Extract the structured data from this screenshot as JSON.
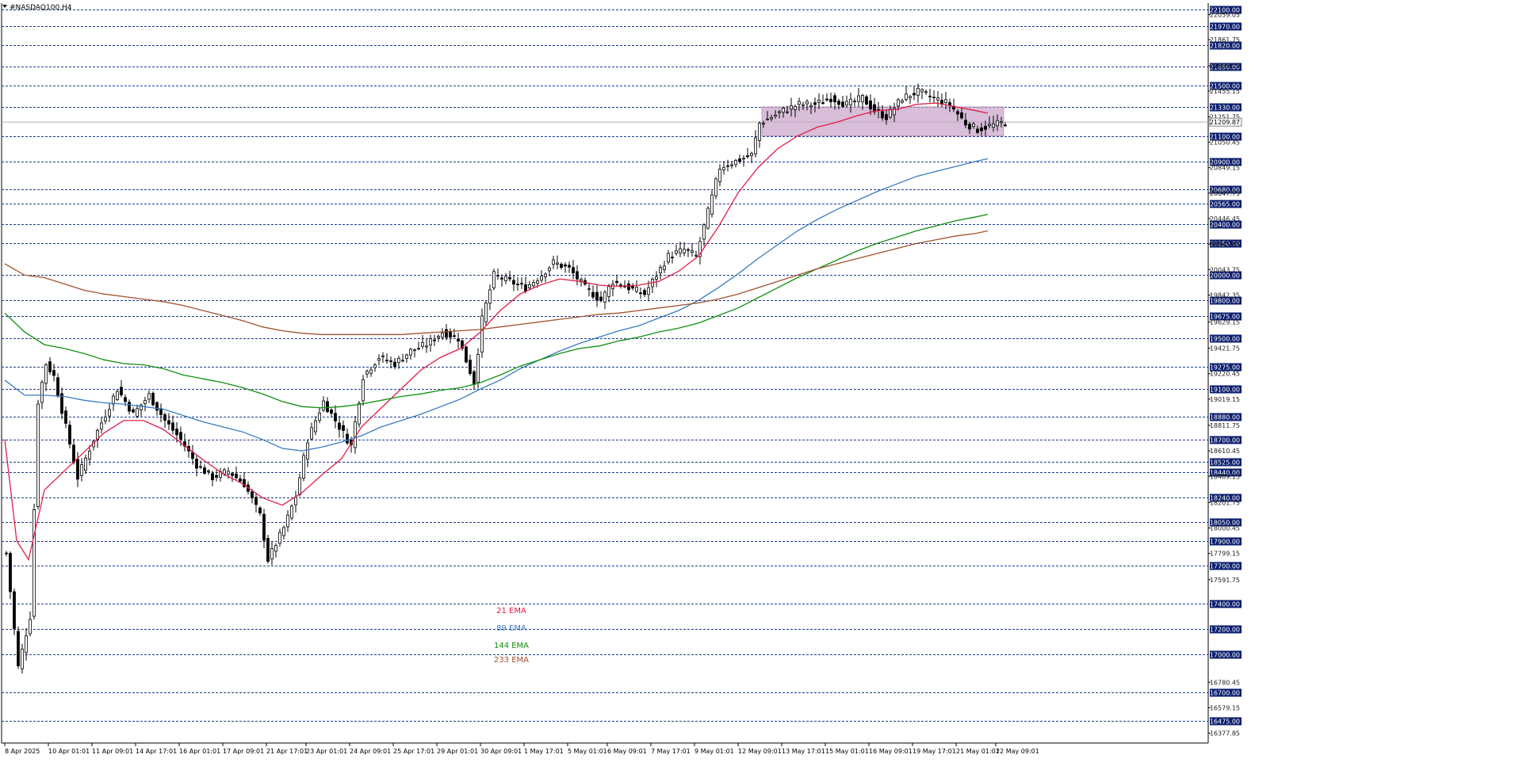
{
  "symbol_label": "#NASDAQ100,H4",
  "colors": {
    "ema21": "#e11d48",
    "ema89": "#3a7cc0",
    "ema144": "#0f8f0f",
    "ema233": "#a0522d",
    "grid": "#1f3a8a",
    "candle": "#000000",
    "zone": "#c8a2c8",
    "axis_label_bg": "#0b1e6e"
  },
  "legend": [
    {
      "key": "ema21",
      "label": "21 EMA"
    },
    {
      "key": "ema89",
      "label": "89 EMA"
    },
    {
      "key": "ema144",
      "label": "144 EMA"
    },
    {
      "key": "ema233",
      "label": "233 EMA"
    }
  ],
  "chart_data": {
    "type": "candlestick",
    "title": "#NASDAQ100,H4",
    "ylim": [
      16300,
      22150
    ],
    "n_bars": 253,
    "highlighted_levels": [
      22100.0,
      21970.0,
      21820.0,
      21650.0,
      21500.0,
      21330.0,
      21100.0,
      20900.0,
      20680.0,
      20565.0,
      20400.0,
      20250.0,
      20000.0,
      19800.0,
      19675.0,
      19500.0,
      19275.0,
      19100.0,
      18880.0,
      18700.0,
      18525.0,
      18440.0,
      18240.0,
      18050.0,
      17900.0,
      17700.0,
      17400.0,
      17200.0,
      17000.0,
      16700.0,
      16475.0
    ],
    "price_ticks": [
      22059.05,
      21861.75,
      21655.15,
      21455.15,
      21251.75,
      21050.45,
      20849.15,
      20647.75,
      20446.45,
      20245.05,
      20043.75,
      19842.35,
      19629.15,
      19421.75,
      19220.45,
      19019.15,
      18811.75,
      18610.45,
      18409.15,
      18201.75,
      18000.45,
      17799.15,
      17591.75,
      16780.45,
      16579.15,
      16377.85
    ],
    "current_price": 21209.87,
    "x_labels": [
      {
        "bar": 0,
        "label": "8 Apr 2025"
      },
      {
        "bar": 11,
        "label": "10 Apr 01:01"
      },
      {
        "bar": 22,
        "label": "11 Apr 09:01"
      },
      {
        "bar": 33,
        "label": "14 Apr 17:01"
      },
      {
        "bar": 44,
        "label": "16 Apr 01:01"
      },
      {
        "bar": 55,
        "label": "17 Apr 09:01"
      },
      {
        "bar": 66,
        "label": "21 Apr 17:01"
      },
      {
        "bar": 76,
        "label": "23 Apr 01:01"
      },
      {
        "bar": 87,
        "label": "24 Apr 09:01"
      },
      {
        "bar": 98,
        "label": "25 Apr 17:01"
      },
      {
        "bar": 109,
        "label": "29 Apr 01:01"
      },
      {
        "bar": 120,
        "label": "30 Apr 09:01"
      },
      {
        "bar": 131,
        "label": "1 May 17:01"
      },
      {
        "bar": 142,
        "label": "5 May 01:01"
      },
      {
        "bar": 152,
        "label": "6 May 09:01"
      },
      {
        "bar": 163,
        "label": "7 May 17:01"
      },
      {
        "bar": 174,
        "label": "9 May 01:01"
      },
      {
        "bar": 185,
        "label": "12 May 09:01"
      },
      {
        "bar": 196,
        "label": "13 May 17:01"
      },
      {
        "bar": 207,
        "label": "15 May 01:01"
      },
      {
        "bar": 218,
        "label": "16 May 09:01"
      },
      {
        "bar": 229,
        "label": "19 May 17:01"
      },
      {
        "bar": 240,
        "label": "21 May 01:01"
      },
      {
        "bar": 250,
        "label": "22 May 09:01"
      }
    ],
    "close_anchors": [
      [
        0,
        17800
      ],
      [
        3,
        16900
      ],
      [
        6,
        17300
      ],
      [
        8,
        19000
      ],
      [
        10,
        19300
      ],
      [
        12,
        19200
      ],
      [
        15,
        18800
      ],
      [
        18,
        18400
      ],
      [
        22,
        18700
      ],
      [
        25,
        18900
      ],
      [
        28,
        19100
      ],
      [
        32,
        18900
      ],
      [
        36,
        19050
      ],
      [
        40,
        18850
      ],
      [
        44,
        18700
      ],
      [
        48,
        18500
      ],
      [
        52,
        18400
      ],
      [
        56,
        18450
      ],
      [
        60,
        18350
      ],
      [
        64,
        18100
      ],
      [
        66,
        17750
      ],
      [
        70,
        18000
      ],
      [
        73,
        18250
      ],
      [
        76,
        18700
      ],
      [
        80,
        19000
      ],
      [
        84,
        18800
      ],
      [
        87,
        18650
      ],
      [
        90,
        19200
      ],
      [
        94,
        19350
      ],
      [
        98,
        19300
      ],
      [
        102,
        19400
      ],
      [
        106,
        19450
      ],
      [
        110,
        19550
      ],
      [
        114,
        19500
      ],
      [
        118,
        19150
      ],
      [
        120,
        19650
      ],
      [
        123,
        20000
      ],
      [
        127,
        19950
      ],
      [
        131,
        19900
      ],
      [
        135,
        20000
      ],
      [
        138,
        20100
      ],
      [
        142,
        20050
      ],
      [
        146,
        19900
      ],
      [
        150,
        19800
      ],
      [
        153,
        19950
      ],
      [
        157,
        19900
      ],
      [
        161,
        19850
      ],
      [
        164,
        20000
      ],
      [
        167,
        20150
      ],
      [
        171,
        20200
      ],
      [
        174,
        20150
      ],
      [
        177,
        20500
      ],
      [
        180,
        20850
      ],
      [
        184,
        20900
      ],
      [
        188,
        20950
      ],
      [
        190,
        21200
      ],
      [
        196,
        21300
      ],
      [
        200,
        21350
      ],
      [
        204,
        21350
      ],
      [
        208,
        21400
      ],
      [
        212,
        21350
      ],
      [
        216,
        21400
      ],
      [
        219,
        21300
      ],
      [
        222,
        21250
      ],
      [
        226,
        21400
      ],
      [
        230,
        21450
      ],
      [
        234,
        21400
      ],
      [
        238,
        21350
      ],
      [
        242,
        21200
      ],
      [
        245,
        21150
      ],
      [
        248,
        21180
      ],
      [
        252,
        21210
      ]
    ],
    "series": [
      {
        "name": "21 EMA",
        "key": "ema21",
        "points": [
          [
            0,
            18700
          ],
          [
            3,
            17900
          ],
          [
            6,
            17750
          ],
          [
            10,
            18300
          ],
          [
            15,
            18450
          ],
          [
            20,
            18600
          ],
          [
            25,
            18750
          ],
          [
            30,
            18850
          ],
          [
            35,
            18850
          ],
          [
            40,
            18780
          ],
          [
            45,
            18660
          ],
          [
            50,
            18540
          ],
          [
            55,
            18430
          ],
          [
            60,
            18350
          ],
          [
            65,
            18240
          ],
          [
            70,
            18180
          ],
          [
            75,
            18280
          ],
          [
            80,
            18420
          ],
          [
            85,
            18550
          ],
          [
            90,
            18800
          ],
          [
            95,
            18950
          ],
          [
            100,
            19100
          ],
          [
            105,
            19250
          ],
          [
            110,
            19350
          ],
          [
            115,
            19420
          ],
          [
            120,
            19550
          ],
          [
            125,
            19720
          ],
          [
            130,
            19850
          ],
          [
            135,
            19920
          ],
          [
            140,
            19970
          ],
          [
            145,
            19950
          ],
          [
            150,
            19920
          ],
          [
            155,
            19910
          ],
          [
            160,
            19920
          ],
          [
            165,
            19950
          ],
          [
            170,
            20030
          ],
          [
            175,
            20150
          ],
          [
            180,
            20380
          ],
          [
            185,
            20650
          ],
          [
            190,
            20850
          ],
          [
            195,
            21000
          ],
          [
            200,
            21100
          ],
          [
            205,
            21170
          ],
          [
            210,
            21210
          ],
          [
            215,
            21260
          ],
          [
            220,
            21300
          ],
          [
            225,
            21310
          ],
          [
            230,
            21350
          ],
          [
            235,
            21360
          ],
          [
            240,
            21330
          ],
          [
            245,
            21300
          ],
          [
            248,
            21280
          ]
        ]
      },
      {
        "name": "89 EMA",
        "key": "ema89",
        "points": [
          [
            0,
            19170
          ],
          [
            5,
            19050
          ],
          [
            10,
            19050
          ],
          [
            15,
            19040
          ],
          [
            20,
            19010
          ],
          [
            25,
            18990
          ],
          [
            30,
            18980
          ],
          [
            35,
            18960
          ],
          [
            40,
            18940
          ],
          [
            45,
            18890
          ],
          [
            50,
            18840
          ],
          [
            55,
            18800
          ],
          [
            60,
            18760
          ],
          [
            65,
            18700
          ],
          [
            70,
            18630
          ],
          [
            75,
            18610
          ],
          [
            80,
            18640
          ],
          [
            85,
            18680
          ],
          [
            90,
            18730
          ],
          [
            95,
            18800
          ],
          [
            100,
            18850
          ],
          [
            105,
            18900
          ],
          [
            110,
            18960
          ],
          [
            115,
            19020
          ],
          [
            120,
            19100
          ],
          [
            125,
            19170
          ],
          [
            130,
            19260
          ],
          [
            135,
            19330
          ],
          [
            140,
            19400
          ],
          [
            145,
            19460
          ],
          [
            150,
            19510
          ],
          [
            155,
            19560
          ],
          [
            160,
            19600
          ],
          [
            165,
            19660
          ],
          [
            170,
            19720
          ],
          [
            175,
            19800
          ],
          [
            180,
            19900
          ],
          [
            185,
            20010
          ],
          [
            190,
            20130
          ],
          [
            195,
            20240
          ],
          [
            200,
            20350
          ],
          [
            205,
            20440
          ],
          [
            210,
            20520
          ],
          [
            215,
            20590
          ],
          [
            220,
            20660
          ],
          [
            225,
            20720
          ],
          [
            230,
            20780
          ],
          [
            235,
            20820
          ],
          [
            240,
            20860
          ],
          [
            245,
            20900
          ],
          [
            248,
            20920
          ]
        ]
      },
      {
        "name": "144 EMA",
        "key": "ema144",
        "points": [
          [
            0,
            19700
          ],
          [
            5,
            19550
          ],
          [
            10,
            19450
          ],
          [
            15,
            19420
          ],
          [
            20,
            19380
          ],
          [
            25,
            19330
          ],
          [
            30,
            19300
          ],
          [
            35,
            19290
          ],
          [
            40,
            19260
          ],
          [
            45,
            19210
          ],
          [
            50,
            19180
          ],
          [
            55,
            19150
          ],
          [
            60,
            19110
          ],
          [
            65,
            19060
          ],
          [
            70,
            19000
          ],
          [
            75,
            18960
          ],
          [
            80,
            18950
          ],
          [
            85,
            18960
          ],
          [
            90,
            18980
          ],
          [
            95,
            19010
          ],
          [
            100,
            19040
          ],
          [
            105,
            19060
          ],
          [
            110,
            19090
          ],
          [
            115,
            19110
          ],
          [
            120,
            19150
          ],
          [
            125,
            19210
          ],
          [
            130,
            19280
          ],
          [
            135,
            19330
          ],
          [
            140,
            19380
          ],
          [
            145,
            19420
          ],
          [
            150,
            19440
          ],
          [
            155,
            19480
          ],
          [
            160,
            19510
          ],
          [
            165,
            19550
          ],
          [
            170,
            19580
          ],
          [
            175,
            19620
          ],
          [
            180,
            19680
          ],
          [
            185,
            19740
          ],
          [
            190,
            19820
          ],
          [
            195,
            19900
          ],
          [
            200,
            19980
          ],
          [
            205,
            20050
          ],
          [
            210,
            20120
          ],
          [
            215,
            20190
          ],
          [
            220,
            20250
          ],
          [
            225,
            20300
          ],
          [
            230,
            20350
          ],
          [
            235,
            20390
          ],
          [
            240,
            20430
          ],
          [
            245,
            20460
          ],
          [
            248,
            20480
          ]
        ]
      },
      {
        "name": "233 EMA",
        "key": "ema233",
        "points": [
          [
            0,
            20090
          ],
          [
            5,
            20000
          ],
          [
            10,
            19980
          ],
          [
            15,
            19930
          ],
          [
            20,
            19880
          ],
          [
            25,
            19850
          ],
          [
            30,
            19830
          ],
          [
            35,
            19810
          ],
          [
            40,
            19790
          ],
          [
            45,
            19760
          ],
          [
            50,
            19720
          ],
          [
            55,
            19680
          ],
          [
            60,
            19640
          ],
          [
            65,
            19590
          ],
          [
            70,
            19560
          ],
          [
            75,
            19540
          ],
          [
            80,
            19530
          ],
          [
            85,
            19530
          ],
          [
            90,
            19530
          ],
          [
            95,
            19530
          ],
          [
            100,
            19530
          ],
          [
            105,
            19540
          ],
          [
            110,
            19550
          ],
          [
            115,
            19560
          ],
          [
            120,
            19570
          ],
          [
            125,
            19590
          ],
          [
            130,
            19610
          ],
          [
            135,
            19630
          ],
          [
            140,
            19650
          ],
          [
            145,
            19670
          ],
          [
            150,
            19690
          ],
          [
            155,
            19700
          ],
          [
            160,
            19720
          ],
          [
            165,
            19740
          ],
          [
            170,
            19760
          ],
          [
            175,
            19780
          ],
          [
            180,
            19810
          ],
          [
            185,
            19850
          ],
          [
            190,
            19900
          ],
          [
            195,
            19950
          ],
          [
            200,
            20000
          ],
          [
            205,
            20050
          ],
          [
            210,
            20090
          ],
          [
            215,
            20130
          ],
          [
            220,
            20170
          ],
          [
            225,
            20210
          ],
          [
            230,
            20250
          ],
          [
            235,
            20280
          ],
          [
            240,
            20310
          ],
          [
            245,
            20330
          ],
          [
            248,
            20350
          ]
        ]
      }
    ],
    "zone": {
      "bar_start": 191,
      "bar_end": 252,
      "price_high": 21330,
      "price_low": 21100
    }
  }
}
